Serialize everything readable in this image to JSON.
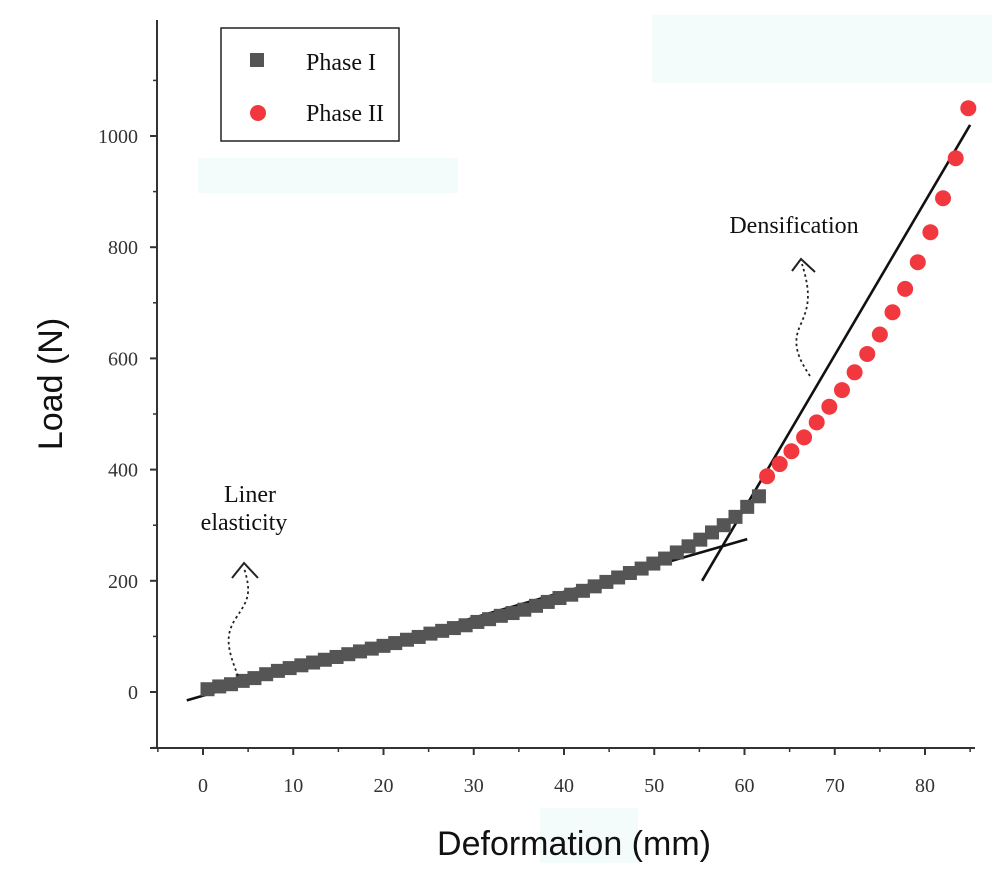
{
  "chart_data": {
    "type": "scatter",
    "title": "",
    "xlabel": "Deformation (mm)",
    "ylabel": "Load (N)",
    "xlim": [
      -5,
      86
    ],
    "ylim": [
      -100,
      1200
    ],
    "x_ticks": [
      0,
      10,
      20,
      30,
      40,
      50,
      60,
      70,
      80
    ],
    "y_ticks": [
      0,
      200,
      400,
      600,
      800,
      1000
    ],
    "legend_position": "top-left",
    "series": [
      {
        "name": "Phase I",
        "marker": "square",
        "color": "#555555",
        "x": [
          0.5,
          1.8,
          3.1,
          4.4,
          5.7,
          7.0,
          8.3,
          9.6,
          10.9,
          12.2,
          13.5,
          14.8,
          16.1,
          17.4,
          18.7,
          20.0,
          21.3,
          22.6,
          23.9,
          25.2,
          26.5,
          27.8,
          29.1,
          30.4,
          31.7,
          33.0,
          34.3,
          35.6,
          36.9,
          38.2,
          39.5,
          40.8,
          42.1,
          43.4,
          44.7,
          46.0,
          47.3,
          48.6,
          49.9,
          51.2,
          52.5,
          53.8,
          55.1,
          56.4,
          57.7,
          59.0,
          60.3,
          61.6
        ],
        "y": [
          5,
          10,
          14,
          20,
          25,
          32,
          38,
          43,
          48,
          53,
          58,
          63,
          68,
          73,
          78,
          83,
          88,
          94,
          99,
          105,
          110,
          115,
          120,
          126,
          131,
          137,
          142,
          148,
          155,
          162,
          169,
          175,
          182,
          190,
          198,
          206,
          214,
          222,
          231,
          240,
          251,
          262,
          274,
          287,
          300,
          315,
          333,
          352
        ]
      },
      {
        "name": "Phase II",
        "marker": "circle",
        "color": "#f2383f",
        "x": [
          62.5,
          63.9,
          65.2,
          66.6,
          68.0,
          69.4,
          70.8,
          72.2,
          73.6,
          75.0,
          76.4,
          77.8,
          79.2,
          80.6,
          82.0,
          83.4,
          84.8
        ],
        "y": [
          388,
          410,
          433,
          458,
          485,
          513,
          543,
          575,
          608,
          643,
          683,
          725,
          773,
          827,
          888,
          960,
          1050
        ]
      }
    ],
    "fit_lines": [
      {
        "name": "elastic-fit",
        "x": [
          -1.8,
          60.3
        ],
        "y": [
          -15,
          275
        ]
      },
      {
        "name": "densification-fit",
        "x": [
          55.3,
          85.0
        ],
        "y": [
          200,
          1020
        ]
      }
    ],
    "annotations": [
      {
        "name": "liner-elasticity",
        "lines": [
          "Liner",
          "elasticity"
        ]
      },
      {
        "name": "densification",
        "lines": [
          "Densification"
        ]
      }
    ]
  }
}
